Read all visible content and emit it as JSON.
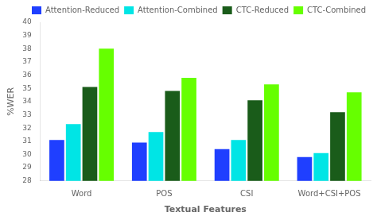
{
  "chart_data": {
    "type": "bar",
    "categories": [
      "Word",
      "POS",
      "CSI",
      "Word+CSI+POS"
    ],
    "series": [
      {
        "name": "Attention-Reduced",
        "color": "#1f3fff",
        "values": [
          31.1,
          30.9,
          30.4,
          29.8
        ]
      },
      {
        "name": "Attention-Combined",
        "color": "#00e5e5",
        "values": [
          32.3,
          31.7,
          31.1,
          30.1
        ]
      },
      {
        "name": "CTC-Reduced",
        "color": "#1a5c1a",
        "values": [
          35.1,
          34.8,
          34.1,
          33.2
        ]
      },
      {
        "name": "CTC-Combined",
        "color": "#66ff00",
        "values": [
          38.0,
          35.8,
          35.3,
          34.7
        ]
      }
    ],
    "xlabel": "Textual Features",
    "ylabel": "%WER",
    "ylim": [
      28,
      40
    ],
    "yticks": [
      28,
      29,
      30,
      31,
      32,
      33,
      34,
      35,
      36,
      37,
      38,
      39,
      40
    ],
    "grid": false,
    "legend": "upper right"
  }
}
